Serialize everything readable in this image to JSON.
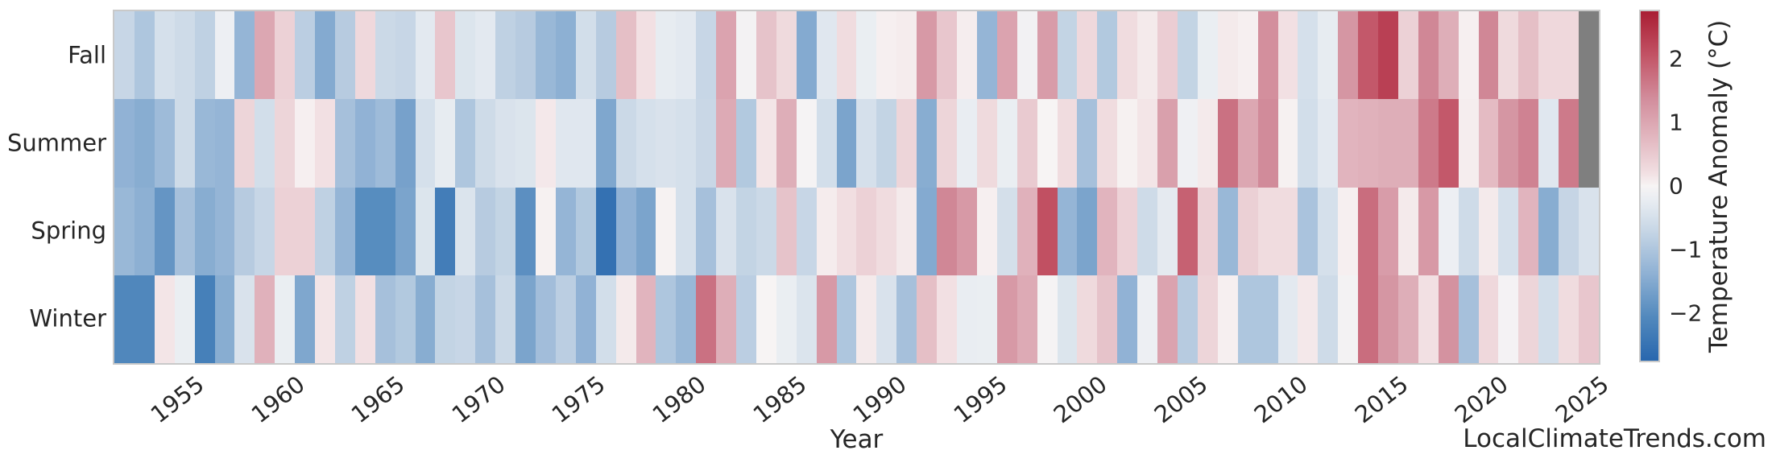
{
  "watermark": "LocalClimateTrends.com",
  "colors": {
    "missing": "#7f7f7f",
    "plot_border": "#c9c9c9",
    "text": "#262626",
    "background": "#ffffff"
  },
  "chart_data": {
    "type": "heatmap",
    "title": "",
    "xlabel": "Year",
    "ylabel": "",
    "legend_position": "right-colorbar",
    "grid": false,
    "rows": [
      "Fall",
      "Summer",
      "Spring",
      "Winter"
    ],
    "years": [
      1952,
      1953,
      1954,
      1955,
      1956,
      1957,
      1958,
      1959,
      1960,
      1961,
      1962,
      1963,
      1964,
      1965,
      1966,
      1967,
      1968,
      1969,
      1970,
      1971,
      1972,
      1973,
      1974,
      1975,
      1976,
      1977,
      1978,
      1979,
      1980,
      1981,
      1982,
      1983,
      1984,
      1985,
      1986,
      1987,
      1988,
      1989,
      1990,
      1991,
      1992,
      1993,
      1994,
      1995,
      1996,
      1997,
      1998,
      1999,
      2000,
      2001,
      2002,
      2003,
      2004,
      2005,
      2006,
      2007,
      2008,
      2009,
      2010,
      2011,
      2012,
      2013,
      2014,
      2015,
      2016,
      2017,
      2018,
      2019,
      2020,
      2021,
      2022,
      2023,
      2024,
      2025
    ],
    "x_tick_labels": [
      "1955",
      "1960",
      "1965",
      "1970",
      "1975",
      "1980",
      "1985",
      "1990",
      "1995",
      "2000",
      "2005",
      "2010",
      "2015",
      "2020",
      "2025"
    ],
    "x_tick_rotation_deg": -38,
    "colorbar": {
      "label": "Temperature Anomaly (°C)",
      "tick_labels": [
        "2",
        "1",
        "0",
        "−1",
        "−2"
      ],
      "tick_values": [
        2,
        1,
        0,
        -1,
        -2
      ],
      "vmin": -2.75,
      "vmax": 2.75
    },
    "colormap_stops": [
      {
        "v": -2.75,
        "c": "#2867ae"
      },
      {
        "v": -2.06,
        "c": "#5289bd"
      },
      {
        "v": -1.375,
        "c": "#8fb1d4"
      },
      {
        "v": -0.69,
        "c": "#c8d7e6"
      },
      {
        "v": -0.22,
        "c": "#e9edf2"
      },
      {
        "v": 0.0,
        "c": "#f7f4f4"
      },
      {
        "v": 0.22,
        "c": "#f1dee1"
      },
      {
        "v": 0.69,
        "c": "#e4bcc4"
      },
      {
        "v": 1.375,
        "c": "#d28d9c"
      },
      {
        "v": 2.06,
        "c": "#c25365"
      },
      {
        "v": 2.75,
        "c": "#a91d33"
      }
    ],
    "series": [
      {
        "name": "Fall",
        "values": [
          -0.7,
          -1.0,
          -0.5,
          -0.6,
          -0.8,
          -0.15,
          -1.3,
          1.0,
          0.4,
          -0.85,
          -1.5,
          -0.9,
          0.3,
          -0.65,
          -0.7,
          -0.3,
          0.55,
          -0.4,
          -0.3,
          -0.8,
          -0.9,
          -1.25,
          -1.4,
          -0.55,
          -0.9,
          0.65,
          0.2,
          -0.25,
          -0.3,
          -0.7,
          1.05,
          -0.07,
          0.6,
          0.28,
          -1.5,
          -0.35,
          0.25,
          -0.2,
          0.05,
          0.08,
          1.2,
          0.55,
          0.07,
          -1.3,
          1.05,
          -0.08,
          1.15,
          -0.75,
          0.3,
          -0.95,
          0.25,
          0.1,
          0.45,
          -0.75,
          -0.2,
          0.1,
          0.05,
          1.35,
          0.2,
          -0.5,
          -0.25,
          1.25,
          2.0,
          2.3,
          0.4,
          1.45,
          0.9,
          0.05,
          1.45,
          0.28,
          0.65,
          0.3,
          0.3,
          null
        ]
      },
      {
        "name": "Summer",
        "values": [
          -1.35,
          -1.45,
          -1.2,
          -0.6,
          -1.25,
          -1.3,
          0.35,
          -0.55,
          0.35,
          0.05,
          0.2,
          -1.1,
          -1.35,
          -1.2,
          -1.65,
          -0.5,
          -0.25,
          -1.0,
          -0.6,
          -0.45,
          -0.4,
          0.12,
          -0.35,
          -0.35,
          -1.55,
          -0.65,
          -0.5,
          -0.45,
          -0.5,
          -0.68,
          0.95,
          -0.95,
          0.15,
          0.9,
          -0.03,
          -0.55,
          -1.6,
          -0.5,
          -0.75,
          0.35,
          -1.45,
          0.35,
          -0.22,
          0.28,
          -0.2,
          0.5,
          0.0,
          0.25,
          -1.1,
          0.25,
          0.03,
          0.15,
          1.1,
          -0.12,
          0.1,
          1.7,
          1.0,
          1.4,
          0.03,
          -0.55,
          -0.3,
          0.8,
          0.85,
          0.9,
          0.9,
          1.6,
          2.0,
          0.07,
          0.7,
          1.25,
          1.5,
          -0.35,
          1.6,
          null
        ]
      },
      {
        "name": "Spring",
        "values": [
          -1.25,
          -1.4,
          -1.85,
          -1.1,
          -1.45,
          -1.3,
          -0.9,
          -0.7,
          0.4,
          0.4,
          -0.8,
          -1.3,
          -2.0,
          -2.0,
          -1.6,
          -0.4,
          -2.3,
          -0.42,
          -0.9,
          -0.75,
          -1.95,
          0.03,
          -1.3,
          -0.95,
          -2.55,
          -1.35,
          -1.6,
          0.02,
          -0.5,
          -1.1,
          -0.45,
          -0.75,
          -0.65,
          0.6,
          -0.7,
          0.08,
          0.22,
          0.4,
          0.25,
          0.1,
          -1.5,
          1.45,
          1.2,
          0.05,
          -0.52,
          0.85,
          2.1,
          -1.3,
          -1.6,
          0.8,
          0.38,
          -0.6,
          -0.28,
          1.9,
          0.4,
          -1.25,
          0.42,
          0.25,
          0.25,
          -1.05,
          -0.5,
          0.05,
          1.75,
          1.15,
          0.1,
          1.2,
          -0.15,
          -0.6,
          0.1,
          -0.5,
          0.8,
          -1.45,
          -0.72,
          -0.45
        ]
      },
      {
        "name": "Winter",
        "values": [
          -2.1,
          -2.1,
          0.15,
          -0.2,
          -2.25,
          -1.45,
          -0.45,
          0.85,
          -0.2,
          -1.55,
          0.15,
          -0.8,
          0.2,
          -1.1,
          -0.95,
          -1.45,
          -0.75,
          -0.7,
          -1.1,
          -0.65,
          -1.6,
          -1.15,
          -0.85,
          -1.35,
          -0.55,
          0.1,
          0.8,
          -1.0,
          -1.25,
          1.7,
          0.9,
          -0.85,
          0.0,
          -0.2,
          -0.42,
          1.2,
          -1.0,
          0.1,
          -0.45,
          -1.1,
          0.65,
          0.2,
          -0.22,
          -0.2,
          1.2,
          0.95,
          -0.03,
          -0.4,
          0.28,
          0.6,
          -1.35,
          -0.15,
          1.05,
          -0.9,
          0.35,
          0.05,
          -1.0,
          -1.0,
          -0.3,
          0.12,
          -0.6,
          -0.07,
          1.75,
          1.25,
          0.9,
          0.2,
          1.3,
          -1.1,
          0.3,
          -0.05,
          0.35,
          -0.55,
          0.25,
          0.55
        ]
      }
    ]
  }
}
